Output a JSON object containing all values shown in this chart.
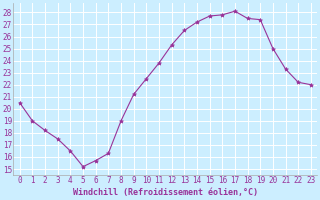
{
  "x": [
    0,
    1,
    2,
    3,
    4,
    5,
    6,
    7,
    8,
    9,
    10,
    11,
    12,
    13,
    14,
    15,
    16,
    17,
    18,
    19,
    20,
    21,
    22,
    23
  ],
  "y": [
    20.5,
    19.0,
    18.2,
    17.5,
    16.5,
    15.2,
    15.7,
    16.3,
    19.0,
    21.2,
    22.5,
    23.8,
    25.3,
    26.5,
    27.2,
    27.7,
    27.8,
    28.1,
    27.5,
    27.4,
    25.0,
    23.3,
    22.2,
    22.0
  ],
  "line_color": "#993399",
  "marker": "*",
  "marker_size": 3,
  "bg_color": "#cceeff",
  "grid_color": "#ffffff",
  "xlabel": "Windchill (Refroidissement éolien,°C)",
  "xlabel_color": "#993399",
  "ylabel_values": [
    15,
    16,
    17,
    18,
    19,
    20,
    21,
    22,
    23,
    24,
    25,
    26,
    27,
    28
  ],
  "ylim": [
    14.5,
    28.8
  ],
  "xlim": [
    -0.5,
    23.5
  ],
  "tick_label_color": "#993399",
  "axis_label_fontsize": 6,
  "tick_fontsize": 5.5
}
